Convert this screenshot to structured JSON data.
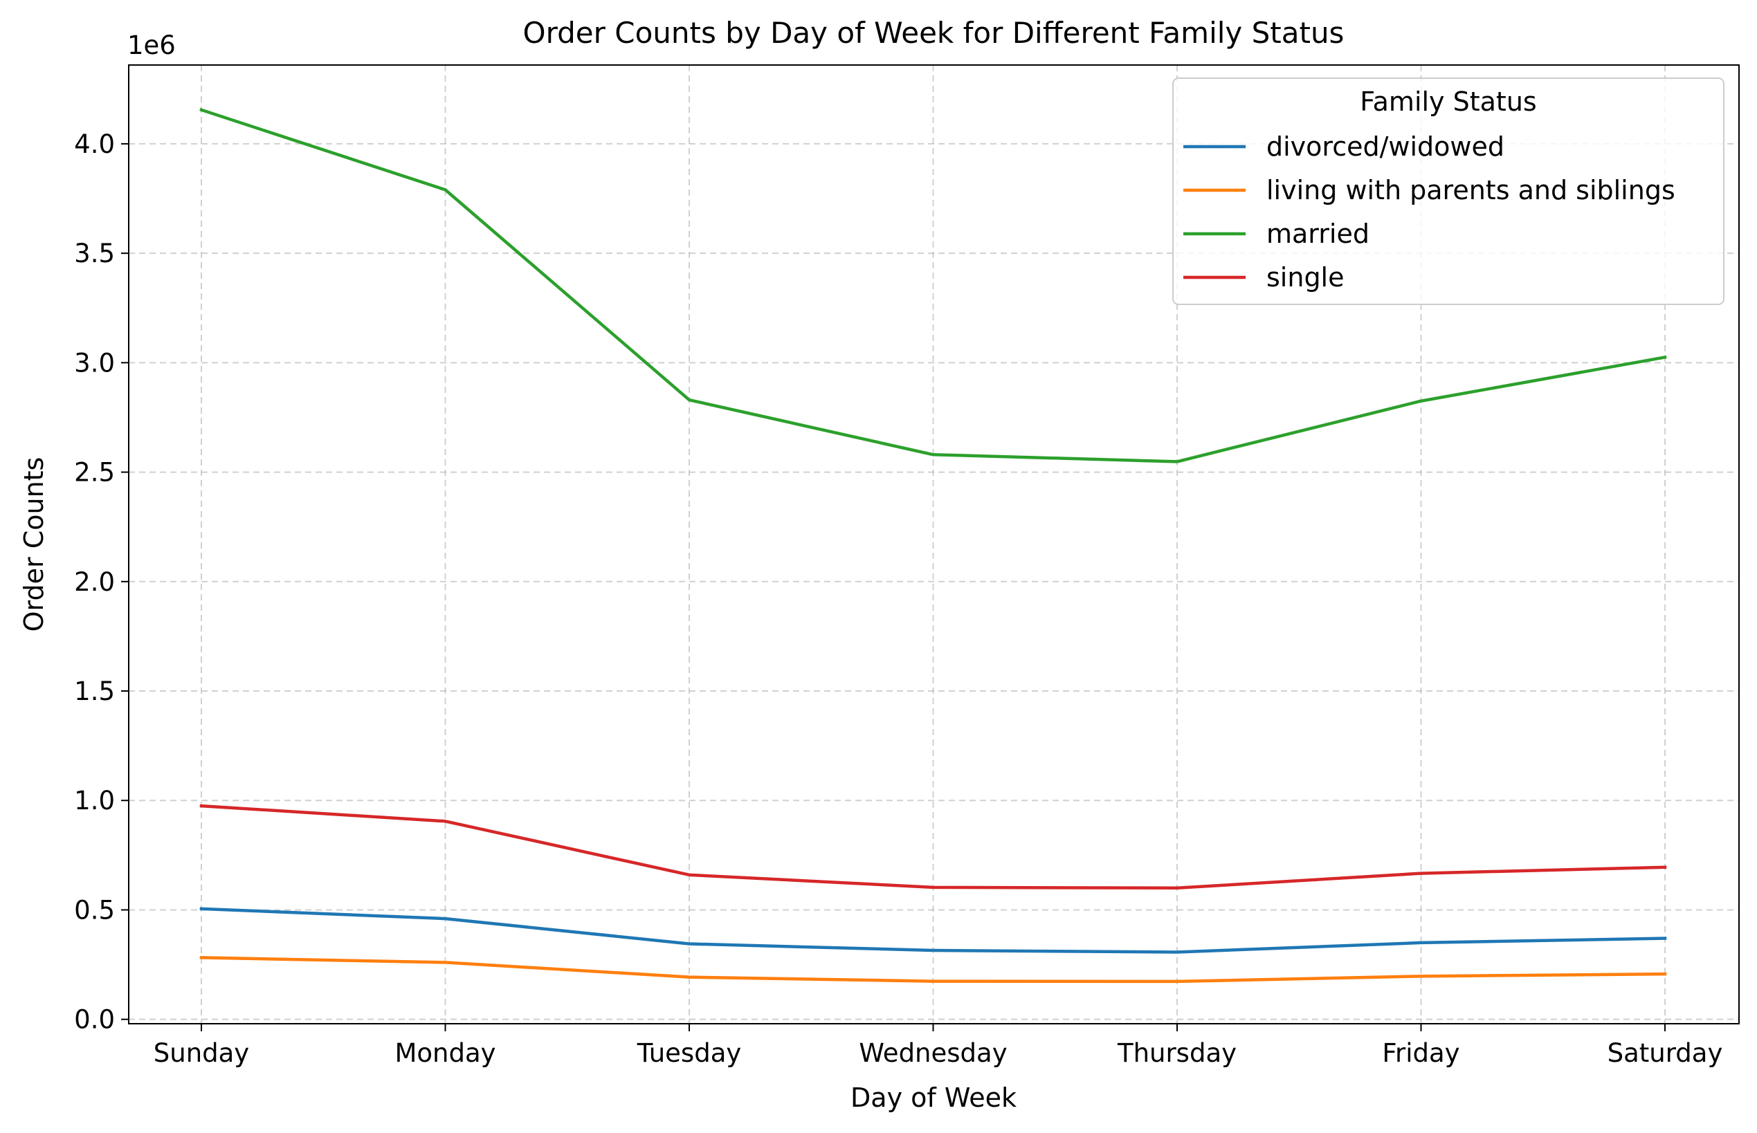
{
  "chart_data": {
    "type": "line",
    "title": "Order Counts by Day of Week for Different Family Status",
    "xlabel": "Day of Week",
    "ylabel": "Order Counts",
    "y_offset_label": "1e6",
    "y_scale_factor": 1000000,
    "categories": [
      "Sunday",
      "Monday",
      "Tuesday",
      "Wednesday",
      "Thursday",
      "Friday",
      "Saturday"
    ],
    "ylim": [
      -20000,
      4360000
    ],
    "yticks": [
      0,
      500000,
      1000000,
      1500000,
      2000000,
      2500000,
      3000000,
      3500000,
      4000000
    ],
    "ytick_labels": [
      "0.0",
      "0.5",
      "1.0",
      "1.5",
      "2.0",
      "2.5",
      "3.0",
      "3.5",
      "4.0"
    ],
    "grid": true,
    "legend": {
      "title": "Family Status",
      "placement": "top-right"
    },
    "series": [
      {
        "name": "divorced/widowed",
        "color": "#1f77b4",
        "values": [
          505000,
          460000,
          345000,
          315000,
          307000,
          350000,
          370000
        ]
      },
      {
        "name": "living with parents and siblings",
        "color": "#ff7f0e",
        "values": [
          282000,
          260000,
          193000,
          174000,
          173000,
          197000,
          207000
        ]
      },
      {
        "name": "married",
        "color": "#2ca02c",
        "values": [
          4155000,
          3790000,
          2830000,
          2580000,
          2548000,
          2825000,
          3025000
        ]
      },
      {
        "name": "single",
        "color": "#d62728",
        "values": [
          975000,
          905000,
          660000,
          603000,
          600000,
          667000,
          695000
        ]
      }
    ]
  }
}
